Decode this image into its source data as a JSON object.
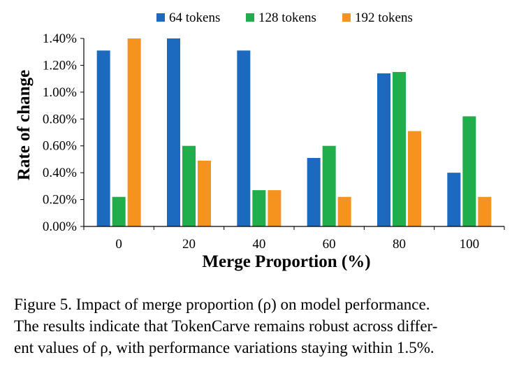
{
  "chart_data": {
    "type": "bar",
    "title": "",
    "xlabel": "Merge Proportion (%)",
    "ylabel": "Rate of change",
    "categories": [
      "0",
      "20",
      "40",
      "60",
      "80",
      "100"
    ],
    "series": [
      {
        "name": "64 tokens",
        "color": "#1B6AC0",
        "values": [
          1.31,
          1.4,
          1.31,
          0.51,
          1.14,
          0.4
        ]
      },
      {
        "name": "128 tokens",
        "color": "#1FAE4B",
        "values": [
          0.22,
          0.6,
          0.27,
          0.6,
          1.15,
          0.82
        ]
      },
      {
        "name": "192 tokens",
        "color": "#F6921E",
        "values": [
          1.4,
          0.49,
          0.27,
          0.22,
          0.71,
          0.22
        ]
      }
    ],
    "ylim": [
      0,
      1.4
    ],
    "yticks": [
      "0.00%",
      "0.20%",
      "0.40%",
      "0.60%",
      "0.80%",
      "1.00%",
      "1.20%",
      "1.40%"
    ],
    "ytick_values": [
      0,
      0.2,
      0.4,
      0.6,
      0.8,
      1.0,
      1.2,
      1.4
    ],
    "legend_position": "top",
    "grid": false
  },
  "caption": {
    "lines": [
      "Figure 5. Impact of merge proportion (ρ) on model performance.",
      "The results indicate that TokenCarve remains robust across differ-",
      "ent values of ρ, with performance variations staying within 1.5%."
    ]
  }
}
